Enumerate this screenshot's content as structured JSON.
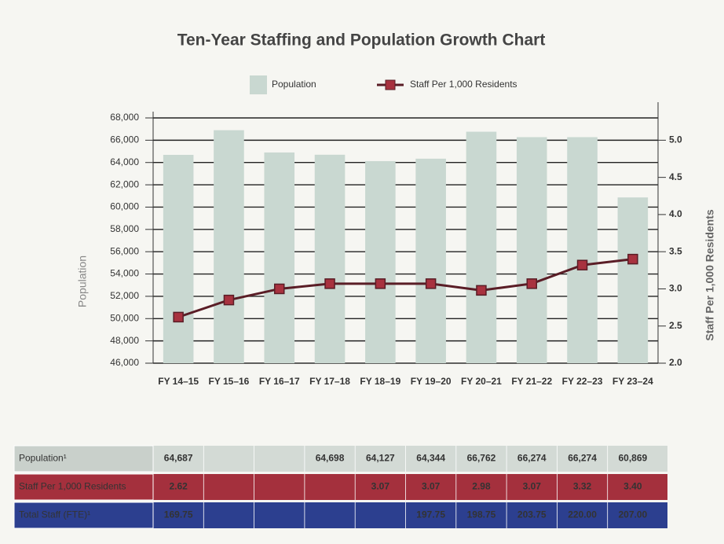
{
  "chart_data": {
    "type": "bar_line",
    "title": "Ten-Year Staffing and Population Growth Chart",
    "ylabel": "Population",
    "y2label": "Staff Per 1,000 Residents",
    "categories": [
      "FY 14–15",
      "FY 15–16",
      "FY 16–17",
      "FY 17–18",
      "FY 18–19",
      "FY 19–20",
      "FY 20–21",
      "FY 21–22",
      "FY 22–23",
      "FY 23–24"
    ],
    "series": [
      {
        "name": "Population",
        "type": "bar",
        "color": "#c9d8d1",
        "values": [
          64687,
          66900,
          64900,
          64698,
          64127,
          64344,
          66762,
          66274,
          66274,
          60869
        ]
      },
      {
        "name": "Staff Per 1,000 Residents",
        "type": "line",
        "axis": "y2",
        "color": "#5a1d26",
        "marker_color": "#a8323f",
        "values": [
          2.62,
          2.85,
          3.0,
          3.07,
          3.07,
          3.07,
          2.98,
          3.07,
          3.32,
          3.4
        ]
      }
    ],
    "ylim": [
      46000,
      68000
    ],
    "yticks": [
      {
        "value": 46000,
        "label": "46,000"
      },
      {
        "value": 48000,
        "label": "48,000"
      },
      {
        "value": 50000,
        "label": "50,000"
      },
      {
        "value": 52000,
        "label": "52,000"
      },
      {
        "value": 54000,
        "label": "54,000"
      },
      {
        "value": 56000,
        "label": "56,000"
      },
      {
        "value": 58000,
        "label": "58,000"
      },
      {
        "value": 60000,
        "label": "60,000"
      },
      {
        "value": 62000,
        "label": "62,000"
      },
      {
        "value": 64000,
        "label": "64,000"
      },
      {
        "value": 66000,
        "label": "66,000"
      },
      {
        "value": 68000,
        "label": "68,000"
      }
    ],
    "y2lim": [
      2.0,
      5.3
    ],
    "y2ticks": [
      {
        "value": 2.0,
        "label": "2.0"
      },
      2.5,
      {
        "value": 3.0,
        "label": "3.0"
      },
      3.5,
      {
        "value": 4.0,
        "label": "4.0"
      },
      4.5,
      {
        "value": 5.0,
        "label": "5.0"
      }
    ],
    "grid": true,
    "legend": "top"
  },
  "table": {
    "rows": [
      {
        "label": "Population¹",
        "cells": [
          "64,687",
          null,
          null,
          "64,698",
          "64,127",
          "64,344",
          "66,762",
          "66,274",
          "66,274",
          "60,869"
        ]
      },
      {
        "label": "Staff Per 1,000 Residents",
        "cells": [
          "2.62",
          null,
          null,
          null,
          "3.07",
          "3.07",
          "2.98",
          "3.07",
          "3.32",
          "3.40"
        ]
      },
      {
        "label": "Total Staff (FTE)¹",
        "cells": [
          "169.75",
          null,
          null,
          null,
          null,
          "197.75",
          "198.75",
          "203.75",
          "220.00",
          "207.00"
        ]
      }
    ]
  }
}
